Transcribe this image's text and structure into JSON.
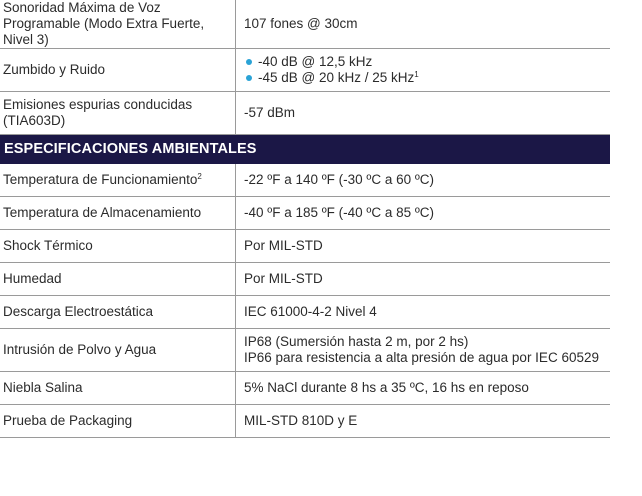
{
  "rows_top": [
    {
      "label": "Sonoridad Máxima de Voz Programable (Modo Extra Fuerte, Nivel 3)",
      "value": "107 fones @ 30cm"
    },
    {
      "label": "Zumbido y Ruido",
      "bullets": [
        "-40 dB @ 12,5 kHz",
        "-45 dB @ 20 kHz / 25 kHz"
      ],
      "bullet_2_footnote": "1"
    },
    {
      "label": "Emisiones espurias conducidas (TIA603D)",
      "value": "-57 dBm"
    }
  ],
  "section_title": "ESPECIFICACIONES AMBIENTALES",
  "rows_env": [
    {
      "label": "Temperatura de Funcionamiento",
      "label_footnote": "2",
      "value": "-22 ºF a 140 ºF (-30 ºC a 60 ºC)"
    },
    {
      "label": "Temperatura de Almacenamiento",
      "value": "-40 ºF a 185 ºF (-40 ºC a 85 ºC)"
    },
    {
      "label": "Shock Térmico",
      "value": "Por MIL-STD"
    },
    {
      "label": "Humedad",
      "value": "Por MIL-STD"
    },
    {
      "label": "Descarga Electroestática",
      "value": "IEC 61000-4-2 Nivel 4"
    },
    {
      "label": "Intrusión de Polvo y Agua",
      "value_line1": "IP68 (Sumersión hasta 2 m, por 2 hs)",
      "value_line2": "IP66 para resistencia a alta presión de agua por IEC 60529"
    },
    {
      "label": "Niebla Salina",
      "value": "5% NaCl durante 8 hs a 35 ºC, 16 hs en reposo"
    },
    {
      "label": "Prueba de Packaging",
      "value": "MIL-STD 810D y E"
    }
  ],
  "colors": {
    "section_bg": "#1b1746",
    "bullet": "#2aa3d6",
    "rule": "#9a9a9a"
  }
}
